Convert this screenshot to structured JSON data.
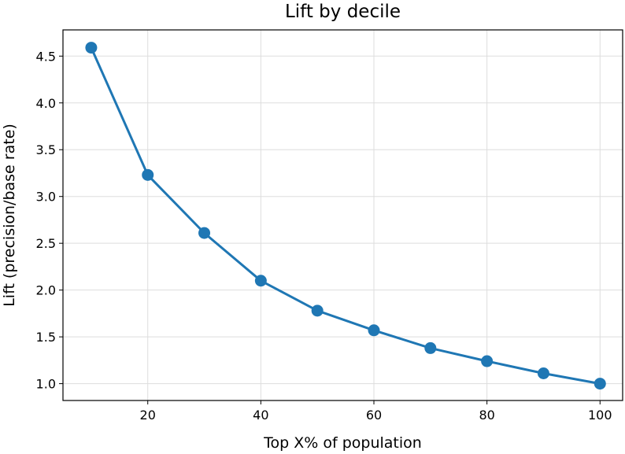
{
  "chart_data": {
    "type": "line",
    "title": "Lift by decile",
    "xlabel": "Top X% of population",
    "ylabel": "Lift (precision/base rate)",
    "xlim": [
      5,
      104
    ],
    "ylim": [
      0.82,
      4.78
    ],
    "xticks": [
      20,
      40,
      60,
      80,
      100
    ],
    "xtick_labels": [
      "20",
      "40",
      "60",
      "80",
      "100"
    ],
    "yticks": [
      1.0,
      1.5,
      2.0,
      2.5,
      3.0,
      3.5,
      4.0,
      4.5
    ],
    "ytick_labels": [
      "1.0",
      "1.5",
      "2.0",
      "2.5",
      "3.0",
      "3.5",
      "4.0",
      "4.5"
    ],
    "grid": true,
    "color": "#1f77b4",
    "series": [
      {
        "x": [
          10,
          20,
          30,
          40,
          50,
          60,
          70,
          80,
          90,
          100
        ],
        "values": [
          4.59,
          3.23,
          2.61,
          2.1,
          1.78,
          1.57,
          1.38,
          1.24,
          1.11,
          1.0
        ]
      }
    ]
  }
}
